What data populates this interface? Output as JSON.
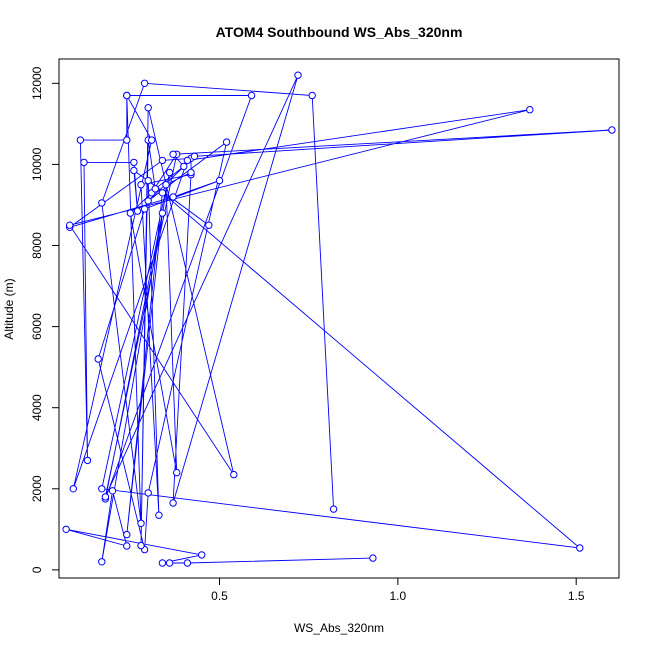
{
  "chart_data": {
    "type": "line",
    "title": "ATOM4 Southbound WS_Abs_320nm",
    "xlabel": "WS_Abs_320nm",
    "ylabel": "Altitude (m)",
    "xlim": [
      0.05,
      1.62
    ],
    "ylim": [
      -200,
      12600
    ],
    "x_ticks": [
      0.5,
      1.0,
      1.5
    ],
    "x_tick_labels": [
      "0.5",
      "1.0",
      "1.5"
    ],
    "y_ticks": [
      0,
      2000,
      4000,
      6000,
      8000,
      10000,
      12000
    ],
    "y_tick_labels": [
      "0",
      "2000",
      "4000",
      "6000",
      "8000",
      "10000",
      "12000"
    ],
    "grid": false,
    "legend": "none",
    "marker": "open-circle",
    "color": "#0000ff",
    "series": [
      {
        "points": [
          [
            0.93,
            290
          ],
          [
            0.41,
            170
          ],
          [
            0.36,
            170
          ],
          [
            0.34,
            170
          ],
          [
            0.45,
            370
          ],
          [
            0.07,
            1000
          ],
          [
            0.24,
            590
          ],
          [
            0.2,
            1950
          ],
          [
            0.17,
            200
          ],
          [
            0.36,
            9800
          ],
          [
            0.17,
            2000
          ],
          [
            1.51,
            540
          ],
          [
            0.34,
            9300
          ],
          [
            0.24,
            870
          ],
          [
            0.34,
            8800
          ],
          [
            0.18,
            1750
          ],
          [
            0.59,
            11700
          ],
          [
            0.24,
            11700
          ],
          [
            0.24,
            10600
          ],
          [
            0.11,
            10600
          ],
          [
            0.13,
            2700
          ],
          [
            0.12,
            10050
          ],
          [
            0.26,
            10050
          ],
          [
            0.27,
            8850
          ],
          [
            0.26,
            9850
          ],
          [
            0.47,
            8500
          ],
          [
            0.3,
            9600
          ],
          [
            0.33,
            1350
          ],
          [
            0.28,
            9500
          ],
          [
            0.42,
            9750
          ],
          [
            0.37,
            1650
          ],
          [
            0.72,
            12200
          ],
          [
            0.18,
            1800
          ],
          [
            0.38,
            10250
          ],
          [
            0.31,
            9300
          ],
          [
            0.25,
            8800
          ],
          [
            0.38,
            2400
          ],
          [
            0.35,
            9500
          ],
          [
            0.42,
            9800
          ],
          [
            0.42,
            10150
          ],
          [
            0.34,
            10100
          ],
          [
            0.08,
            8450
          ],
          [
            0.37,
            9200
          ],
          [
            0.5,
            9600
          ],
          [
            0.29,
            8900
          ],
          [
            0.16,
            5200
          ],
          [
            0.29,
            500
          ],
          [
            0.3,
            1900
          ],
          [
            0.52,
            10550
          ],
          [
            0.3,
            9100
          ],
          [
            0.43,
            10200
          ],
          [
            1.6,
            10850
          ],
          [
            0.37,
            10250
          ],
          [
            0.4,
            9950
          ],
          [
            0.32,
            9400
          ],
          [
            0.3,
            10600
          ],
          [
            0.28,
            600
          ],
          [
            0.3,
            11400
          ],
          [
            0.54,
            2350
          ],
          [
            0.08,
            8500
          ],
          [
            1.37,
            11350
          ],
          [
            0.41,
            10100
          ],
          [
            0.09,
            2000
          ],
          [
            0.31,
            10600
          ],
          [
            0.24,
            11700
          ],
          [
            0.28,
            1150
          ],
          [
            0.17,
            9050
          ],
          [
            0.29,
            12000
          ],
          [
            0.76,
            11700
          ],
          [
            0.82,
            1500
          ]
        ]
      }
    ]
  }
}
